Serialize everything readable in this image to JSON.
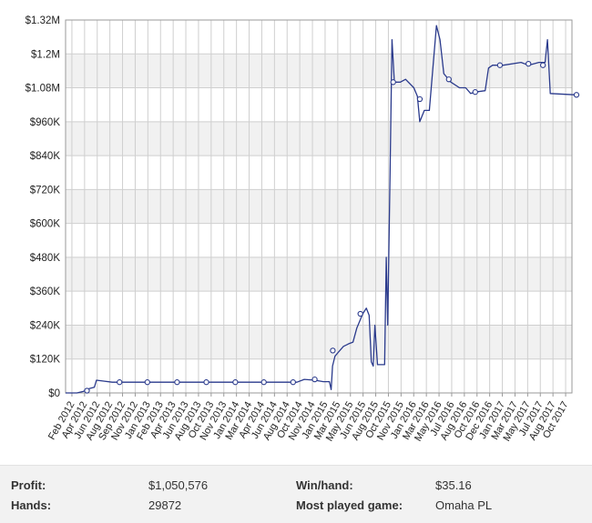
{
  "chart_data": {
    "type": "line",
    "title": "",
    "xlabel": "",
    "ylabel": "",
    "grid": true,
    "ylim": [
      0,
      1320000
    ],
    "yticks": [
      {
        "value": 0,
        "label": "$0"
      },
      {
        "value": 120000,
        "label": "$120K"
      },
      {
        "value": 240000,
        "label": "$240K"
      },
      {
        "value": 360000,
        "label": "$360K"
      },
      {
        "value": 480000,
        "label": "$480K"
      },
      {
        "value": 600000,
        "label": "$600K"
      },
      {
        "value": 720000,
        "label": "$720K"
      },
      {
        "value": 840000,
        "label": "$840K"
      },
      {
        "value": 960000,
        "label": "$960K"
      },
      {
        "value": 1080000,
        "label": "$1.08M"
      },
      {
        "value": 1200000,
        "label": "$1.2M"
      },
      {
        "value": 1320000,
        "label": "$1.32M"
      }
    ],
    "xlim": [
      "2012-02",
      "2017-12"
    ],
    "xticks": [
      "Feb 2012",
      "Apr 2012",
      "Jun 2012",
      "Aug 2012",
      "Sep 2012",
      "Nov 2012",
      "Jan 2013",
      "Feb 2013",
      "Apr 2013",
      "Jun 2013",
      "Aug 2013",
      "Oct 2013",
      "Nov 2013",
      "Jan 2014",
      "Mar 2014",
      "Apr 2014",
      "Jun 2014",
      "Aug 2014",
      "Oct 2014",
      "Nov 2014",
      "Jan 2015",
      "Mar 2015",
      "May 2015",
      "Jun 2015",
      "Aug 2015",
      "Oct 2015",
      "Nov 2015",
      "Jan 2016",
      "Mar 2016",
      "May 2016",
      "Jul 2016",
      "Aug 2016",
      "Oct 2016",
      "Dec 2016",
      "Jan 2017",
      "Mar 2017",
      "May 2017",
      "Jul 2017",
      "Aug 2017",
      "Oct 2017"
    ],
    "series": [
      {
        "color": "#2a3a8c",
        "points": [
          [
            "2012-02-01",
            0
          ],
          [
            "2012-03-20",
            0
          ],
          [
            "2012-04-15",
            5000
          ],
          [
            "2012-05-10",
            15000
          ],
          [
            "2012-06-01",
            20000
          ],
          [
            "2012-06-10",
            45000
          ],
          [
            "2012-07-10",
            42000
          ],
          [
            "2012-08-15",
            38000
          ],
          [
            "2013-01-01",
            38000
          ],
          [
            "2014-06-01",
            38000
          ],
          [
            "2014-10-01",
            38000
          ],
          [
            "2014-11-01",
            48000
          ],
          [
            "2014-12-15",
            45000
          ],
          [
            "2015-01-20",
            40000
          ],
          [
            "2015-02-15",
            40000
          ],
          [
            "2015-02-22",
            12000
          ],
          [
            "2015-02-28",
            95000
          ],
          [
            "2015-03-10",
            130000
          ],
          [
            "2015-03-25",
            145000
          ],
          [
            "2015-04-15",
            165000
          ],
          [
            "2015-05-10",
            175000
          ],
          [
            "2015-05-25",
            180000
          ],
          [
            "2015-06-10",
            230000
          ],
          [
            "2015-07-05",
            280000
          ],
          [
            "2015-07-20",
            300000
          ],
          [
            "2015-08-01",
            275000
          ],
          [
            "2015-08-10",
            110000
          ],
          [
            "2015-08-18",
            95000
          ],
          [
            "2015-08-25",
            240000
          ],
          [
            "2015-09-05",
            100000
          ],
          [
            "2015-10-05",
            100000
          ],
          [
            "2015-10-12",
            480000
          ],
          [
            "2015-10-18",
            240000
          ],
          [
            "2015-10-28",
            780000
          ],
          [
            "2015-11-05",
            1250000
          ],
          [
            "2015-11-15",
            1100000
          ],
          [
            "2015-12-10",
            1100000
          ],
          [
            "2016-01-01",
            1110000
          ],
          [
            "2016-02-05",
            1080000
          ],
          [
            "2016-02-20",
            1050000
          ],
          [
            "2016-03-01",
            960000
          ],
          [
            "2016-03-20",
            1000000
          ],
          [
            "2016-04-10",
            1000000
          ],
          [
            "2016-05-10",
            1300000
          ],
          [
            "2016-05-25",
            1250000
          ],
          [
            "2016-06-10",
            1130000
          ],
          [
            "2016-07-10",
            1100000
          ],
          [
            "2016-08-15",
            1080000
          ],
          [
            "2016-09-10",
            1080000
          ],
          [
            "2016-10-01",
            1060000
          ],
          [
            "2016-10-20",
            1065000
          ],
          [
            "2016-12-01",
            1070000
          ],
          [
            "2016-12-15",
            1150000
          ],
          [
            "2017-01-01",
            1160000
          ],
          [
            "2017-02-15",
            1160000
          ],
          [
            "2017-05-01",
            1170000
          ],
          [
            "2017-06-01",
            1160000
          ],
          [
            "2017-07-15",
            1170000
          ],
          [
            "2017-08-10",
            1170000
          ],
          [
            "2017-08-20",
            1250000
          ],
          [
            "2017-09-01",
            1060000
          ],
          [
            "2017-12-20",
            1055000
          ]
        ],
        "markers": [
          [
            "2012-05-01",
            8000
          ],
          [
            "2012-09-15",
            38000
          ],
          [
            "2013-01-10",
            38000
          ],
          [
            "2013-05-15",
            38000
          ],
          [
            "2013-09-15",
            38000
          ],
          [
            "2014-01-15",
            38000
          ],
          [
            "2014-05-15",
            38000
          ],
          [
            "2014-09-15",
            38000
          ],
          [
            "2014-12-15",
            48000
          ],
          [
            "2015-03-01",
            150000
          ],
          [
            "2015-06-25",
            280000
          ],
          [
            "2015-11-10",
            1100000
          ],
          [
            "2016-03-01",
            1040000
          ],
          [
            "2016-07-01",
            1110000
          ],
          [
            "2016-10-20",
            1065000
          ],
          [
            "2017-02-01",
            1160000
          ],
          [
            "2017-06-01",
            1165000
          ],
          [
            "2017-08-01",
            1160000
          ],
          [
            "2017-12-20",
            1055000
          ]
        ]
      }
    ]
  },
  "stats": {
    "profit_label": "Profit:",
    "profit_value": "$1,050,576",
    "hands_label": "Hands:",
    "hands_value": "29872",
    "winhand_label": "Win/hand:",
    "winhand_value": "$35.16",
    "game_label": "Most played game:",
    "game_value": "Omaha PL"
  }
}
